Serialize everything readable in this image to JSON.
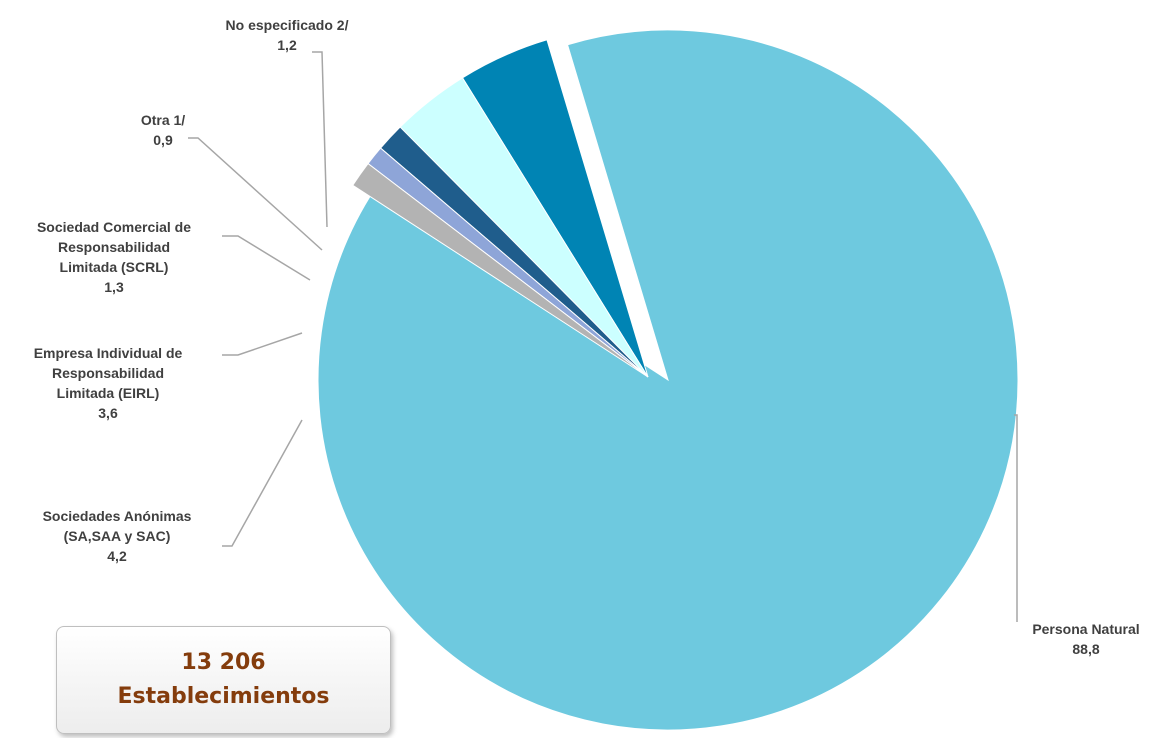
{
  "chart_data": {
    "type": "pie",
    "slices": [
      {
        "label_lines": [
          "Persona Natural"
        ],
        "value": 88.8,
        "value_text": "88,8",
        "color": "#6ec9df"
      },
      {
        "label_lines": [
          "Sociedades Anónimas",
          "(SA,SAA y SAC)"
        ],
        "value": 4.2,
        "value_text": "4,2",
        "color": "#0084b4"
      },
      {
        "label_lines": [
          "Empresa Individual de",
          "Responsabilidad",
          "Limitada (EIRL)"
        ],
        "value": 3.6,
        "value_text": "3,6",
        "color": "#ccffff"
      },
      {
        "label_lines": [
          "Sociedad Comercial de",
          "Responsabilidad",
          "Limitada (SCRL)"
        ],
        "value": 1.3,
        "value_text": "1,3",
        "color": "#1f5d8c"
      },
      {
        "label_lines": [
          "Otra 1/"
        ],
        "value": 0.9,
        "value_text": "0,9",
        "color": "#8ea5d8"
      },
      {
        "label_lines": [
          "No especificado 2/"
        ],
        "value": 1.2,
        "value_text": "1,2",
        "color": "#b3b3b3"
      }
    ]
  },
  "total_box": {
    "line1": "13 206",
    "line2": "Establecimientos"
  }
}
